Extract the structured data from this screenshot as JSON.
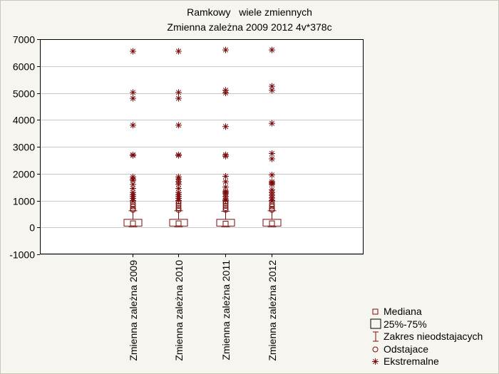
{
  "chart_data": {
    "type": "box",
    "title": "Ramkowy   wiele zmiennych",
    "subtitle": "Zmienna zależna 2009 2012 4v*378c",
    "categories": [
      "Zmienna zależna 2009",
      "Zmienna zależna 2010",
      "Zmienna zależna 2011",
      "Zmienna zależna 2012"
    ],
    "ylim": [
      -1000,
      7000
    ],
    "yticks": [
      -1000,
      0,
      1000,
      2000,
      3000,
      4000,
      5000,
      6000,
      7000
    ],
    "grid": true,
    "colors": {
      "series": "#7b0b0b",
      "grid": "#c8c8c8",
      "background": "#ffffff"
    },
    "series": [
      {
        "median": 150,
        "q1": 50,
        "q3": 300,
        "whisker_low": 30,
        "whisker_high": 620,
        "outliers": [
          650,
          700,
          780,
          860,
          950
        ],
        "extremes": [
          6550,
          5020,
          4800,
          3800,
          2700,
          2680,
          1880,
          1800,
          1750,
          1600,
          1450,
          1300,
          1220,
          1150,
          1080,
          1000
        ]
      },
      {
        "median": 150,
        "q1": 50,
        "q3": 300,
        "whisker_low": 30,
        "whisker_high": 620,
        "outliers": [
          650,
          720,
          800,
          880,
          960
        ],
        "extremes": [
          6550,
          5020,
          4800,
          3800,
          2700,
          2680,
          1880,
          1800,
          1700,
          1600,
          1450,
          1300,
          1220,
          1150,
          1080,
          1000
        ]
      },
      {
        "median": 140,
        "q1": 50,
        "q3": 300,
        "whisker_low": 30,
        "whisker_high": 600,
        "outliers": [
          650,
          720,
          800,
          880,
          950
        ],
        "extremes": [
          6600,
          5100,
          5000,
          3750,
          2700,
          2650,
          1900,
          1700,
          1500,
          1350,
          1300,
          1250,
          1150,
          1050,
          1000
        ]
      },
      {
        "median": 150,
        "q1": 50,
        "q3": 300,
        "whisker_low": 30,
        "whisker_high": 620,
        "outliers": [
          650,
          700,
          780,
          860,
          960
        ],
        "extremes": [
          6600,
          5250,
          5100,
          3870,
          2750,
          2550,
          1950,
          1700,
          1650,
          1600,
          1400,
          1300,
          1200,
          1100,
          1000
        ]
      }
    ],
    "legend": [
      "Mediana",
      "25%-75%",
      "Zakres nieodstajacych",
      "Odstajace",
      "Ekstremalne"
    ]
  }
}
